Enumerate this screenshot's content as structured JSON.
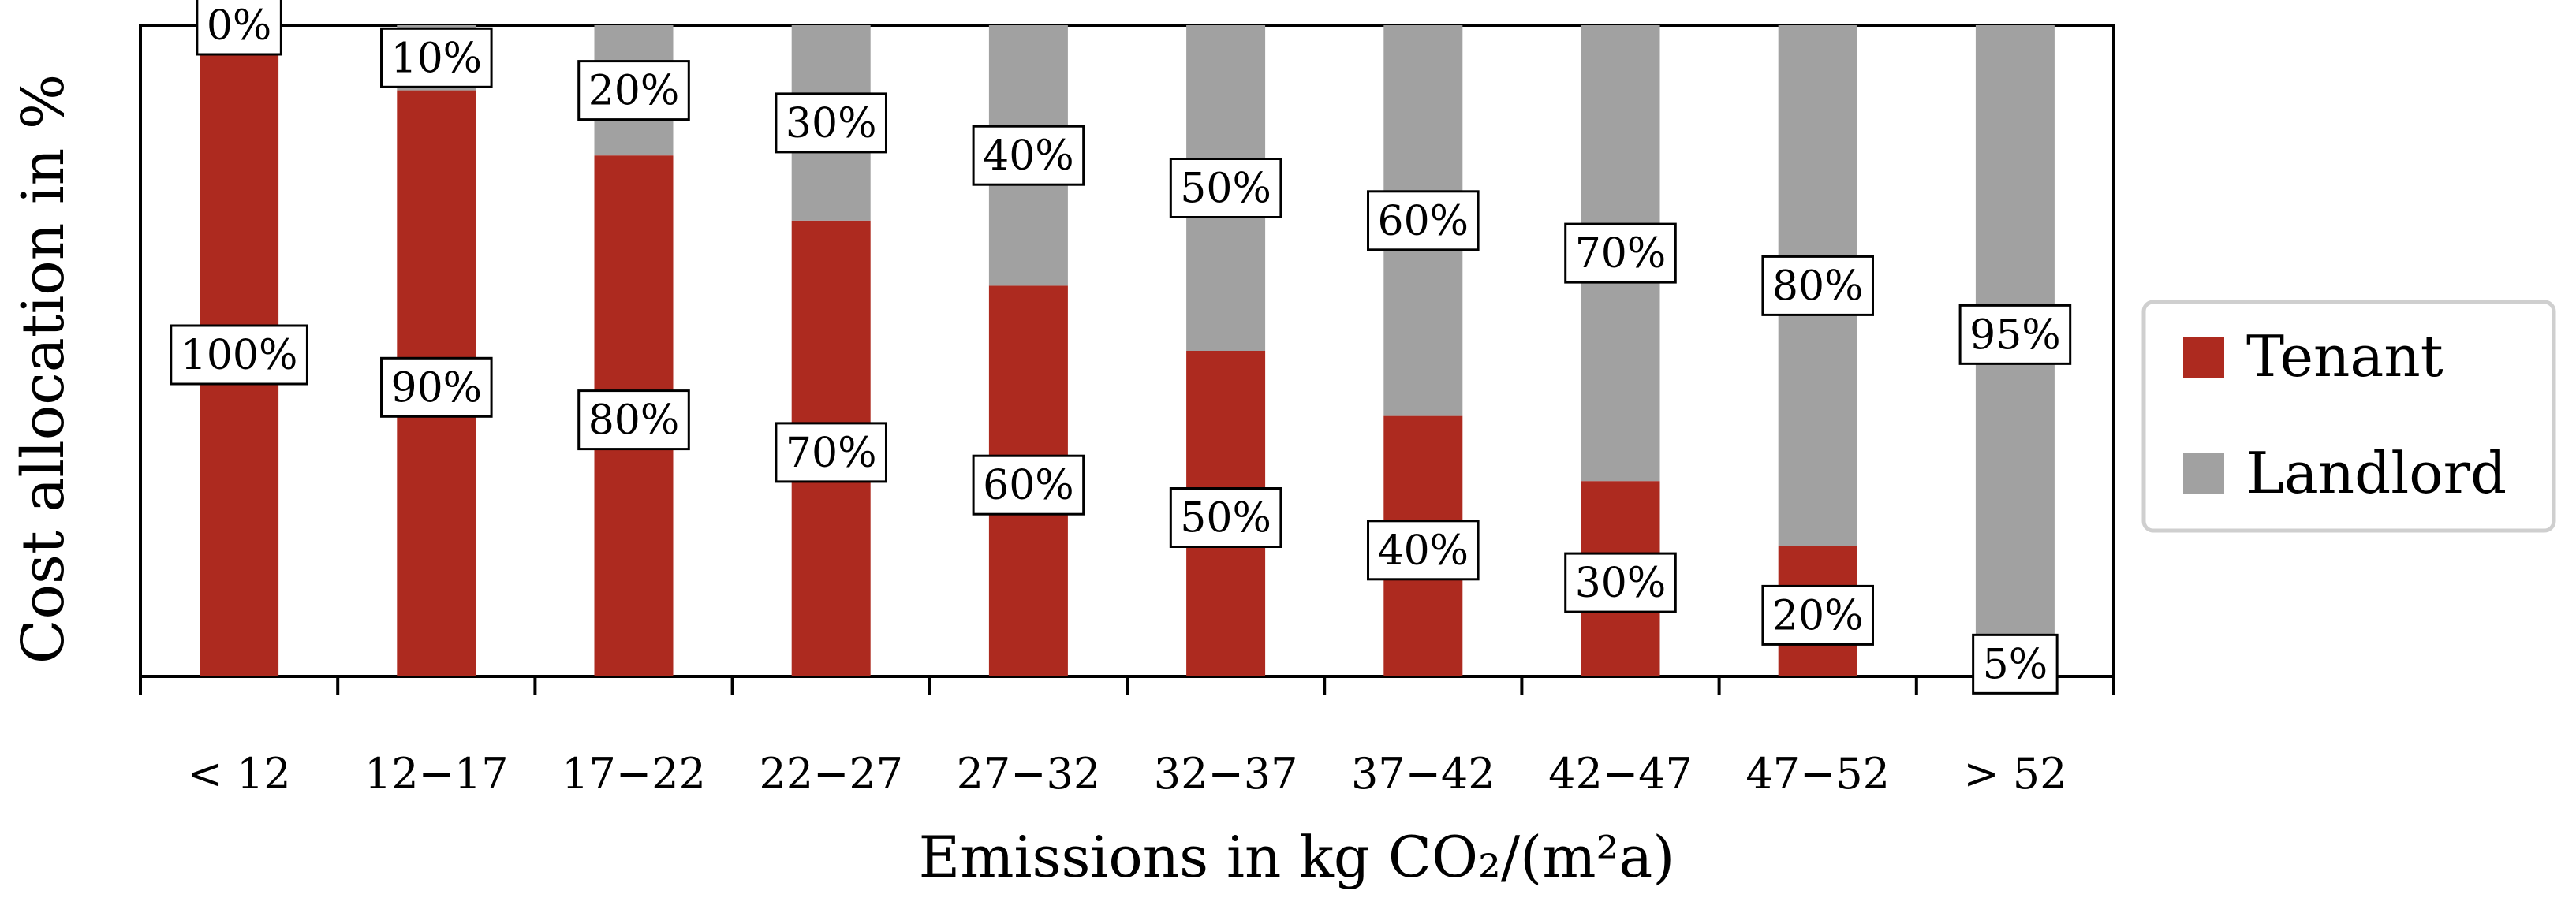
{
  "chart_data": {
    "type": "bar",
    "stacked": true,
    "ylabel": "Cost allocation in %",
    "xlabel": "Emissions in kg CO₂/(m²a)",
    "categories": [
      "< 12",
      "12−17",
      "17−22",
      "22−27",
      "27−32",
      "32−37",
      "37−42",
      "42−47",
      "47−52",
      "> 52"
    ],
    "ylim": [
      0,
      100
    ],
    "series": [
      {
        "name": "Tenant",
        "color": "#ad2a1f",
        "values": [
          100,
          90,
          80,
          70,
          60,
          50,
          40,
          30,
          20,
          5
        ],
        "labels": [
          "100%",
          "90%",
          "80%",
          "70%",
          "60%",
          "50%",
          "40%",
          "30%",
          "20%",
          "5%"
        ]
      },
      {
        "name": "Landlord",
        "color": "#a1a1a1",
        "values": [
          0,
          10,
          20,
          30,
          40,
          50,
          60,
          70,
          80,
          95
        ],
        "labels": [
          "0%",
          "10%",
          "20%",
          "30%",
          "40%",
          "50%",
          "60%",
          "70%",
          "80%",
          "95%"
        ]
      }
    ],
    "legend": {
      "position": "right"
    }
  }
}
